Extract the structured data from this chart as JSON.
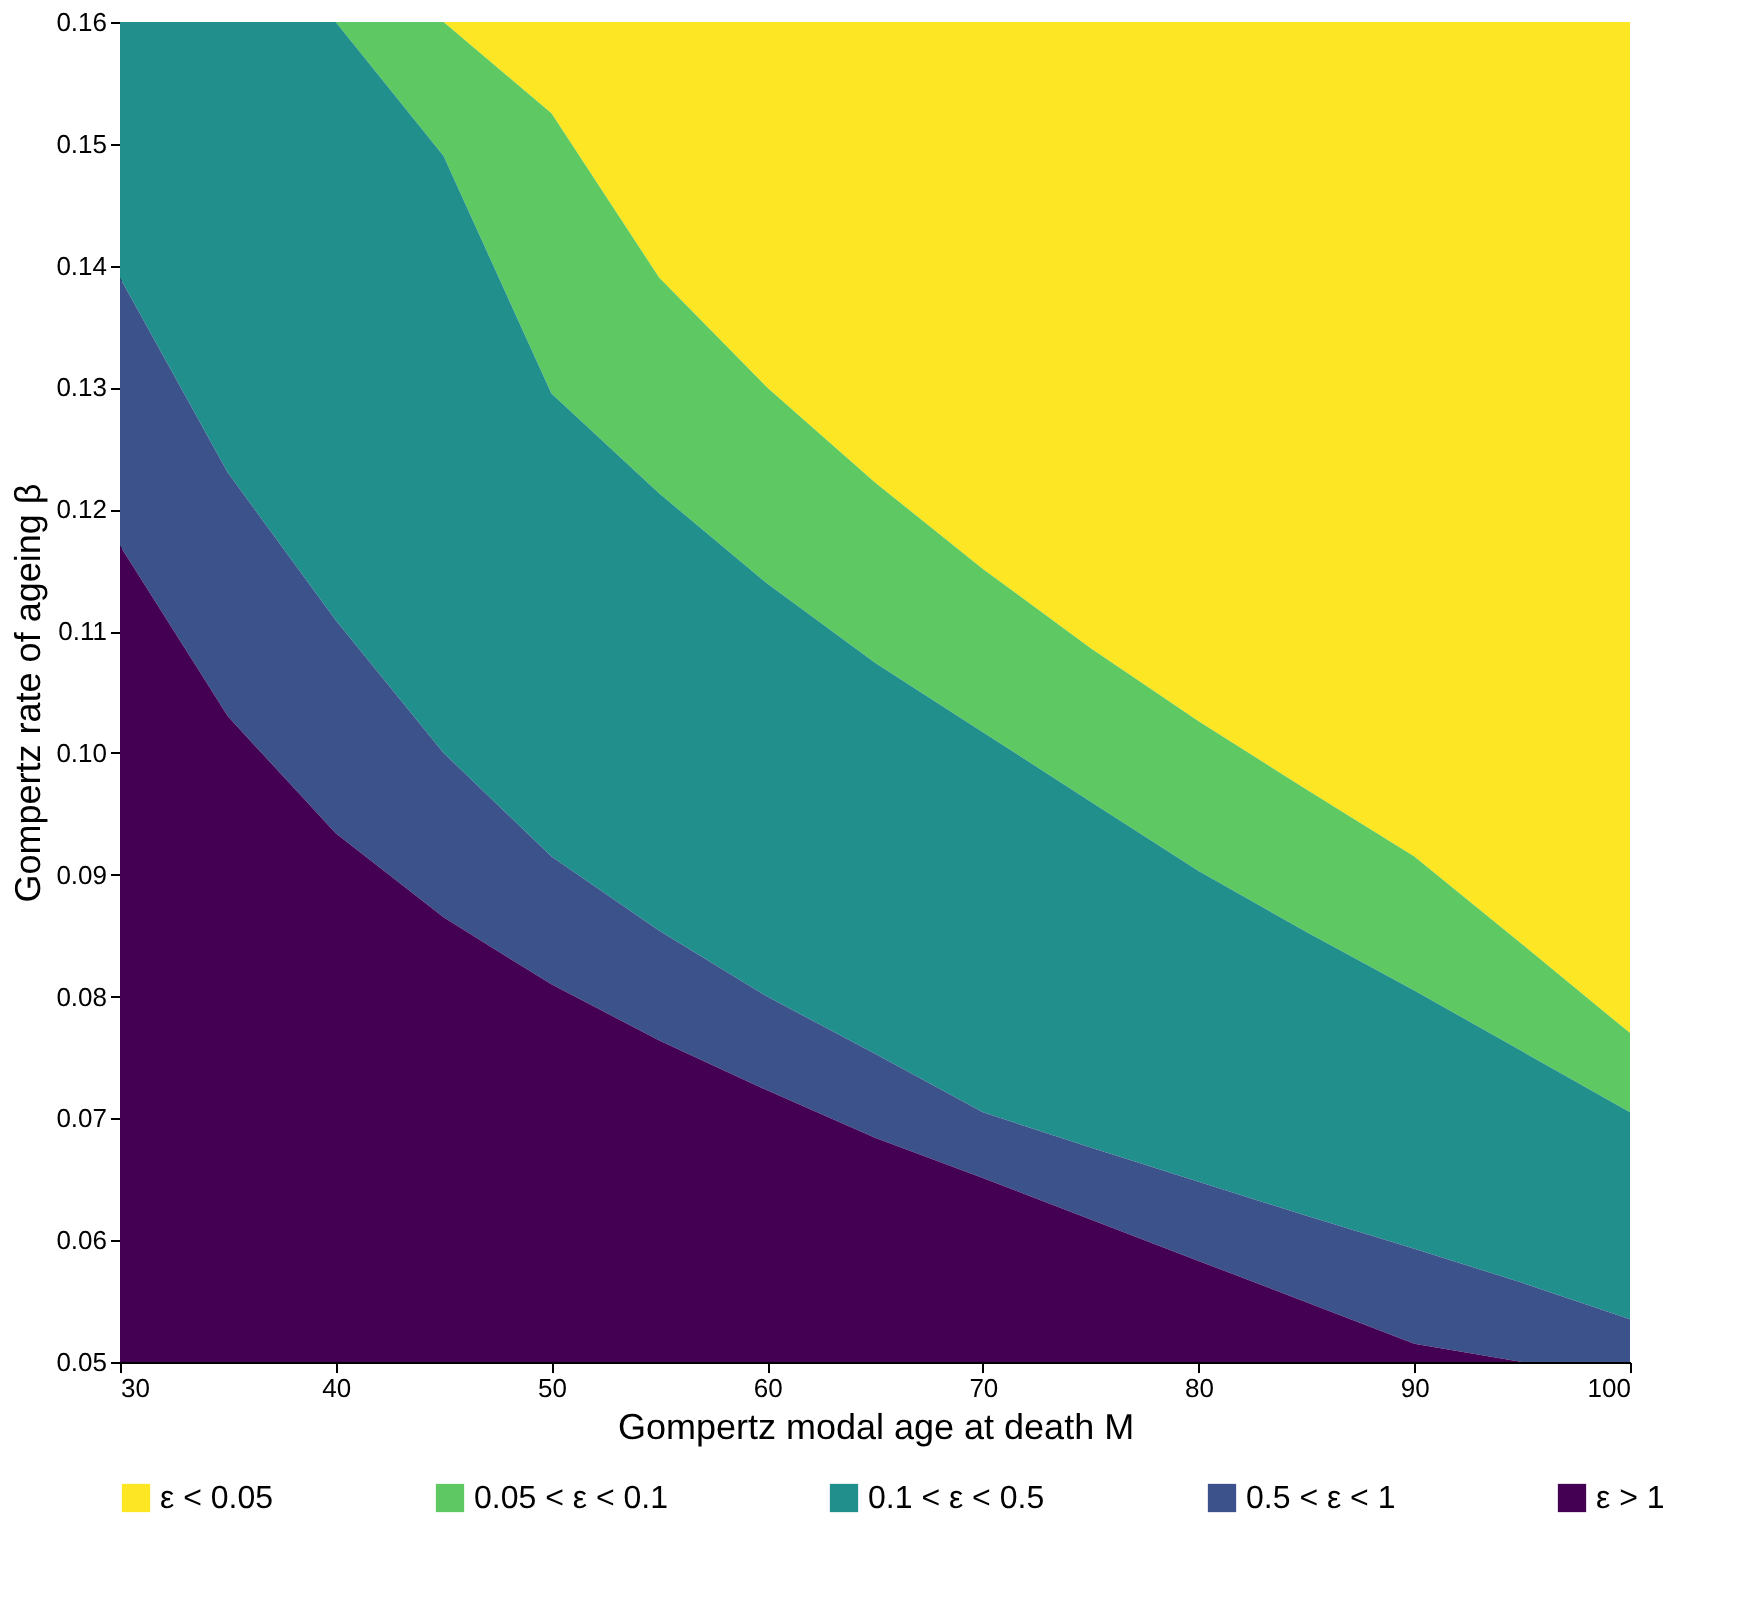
{
  "chart_data": {
    "type": "area",
    "xlabel": "Gompertz modal age at death M",
    "ylabel": "Gompertz rate of ageing β",
    "x": [
      30,
      35,
      40,
      45,
      50,
      55,
      60,
      65,
      70,
      75,
      80,
      85,
      90,
      95,
      100
    ],
    "series": [
      {
        "name": "ε < 0.05",
        "color": "#fde725",
        "values": [
          0.16,
          0.16,
          0.16,
          0.16,
          0.16,
          0.16,
          0.16,
          0.16,
          0.16,
          0.16,
          0.16,
          0.16,
          0.16,
          0.16,
          0.16
        ]
      },
      {
        "name": "0.05 < ε < 0.1",
        "color": "#5ec962",
        "values": [
          0.16,
          0.16,
          0.16,
          0.16,
          0.1525,
          0.139,
          0.13,
          0.1222,
          0.1151,
          0.1086,
          0.1026,
          0.097,
          0.0915,
          0.0843,
          0.077
        ]
      },
      {
        "name": "0.1 < ε < 0.5",
        "color": "#21908d",
        "values": [
          0.16,
          0.16,
          0.16,
          0.149,
          0.1295,
          0.1213,
          0.1139,
          0.1074,
          0.1017,
          0.096,
          0.0903,
          0.0853,
          0.0805,
          0.0755,
          0.0705
        ]
      },
      {
        "name": "0.5 < ε < 1",
        "color": "#3b528b",
        "values": [
          0.139,
          0.123,
          0.1109,
          0.1,
          0.0915,
          0.0854,
          0.08,
          0.0753,
          0.0705,
          0.0676,
          0.0648,
          0.062,
          0.0593,
          0.0565,
          0.0535
        ]
      },
      {
        "name": "ε > 1",
        "color": "#440154",
        "values": [
          0.117,
          0.103,
          0.0934,
          0.0865,
          0.081,
          0.0764,
          0.0723,
          0.0684,
          0.0651,
          0.0617,
          0.0583,
          0.0549,
          0.0515,
          0.05,
          0.05
        ]
      }
    ],
    "xlim": [
      30,
      100
    ],
    "xticks": [
      30,
      40,
      50,
      60,
      70,
      80,
      90,
      100
    ],
    "ylim": [
      0.05,
      0.16
    ],
    "yticks": [
      0.05,
      0.06,
      0.07,
      0.08,
      0.09,
      {
        "value": 0.1,
        "label": "0.10"
      },
      0.11,
      0.12,
      0.13,
      0.14,
      0.15,
      0.16
    ],
    "grid": false,
    "legend": "bottom"
  }
}
